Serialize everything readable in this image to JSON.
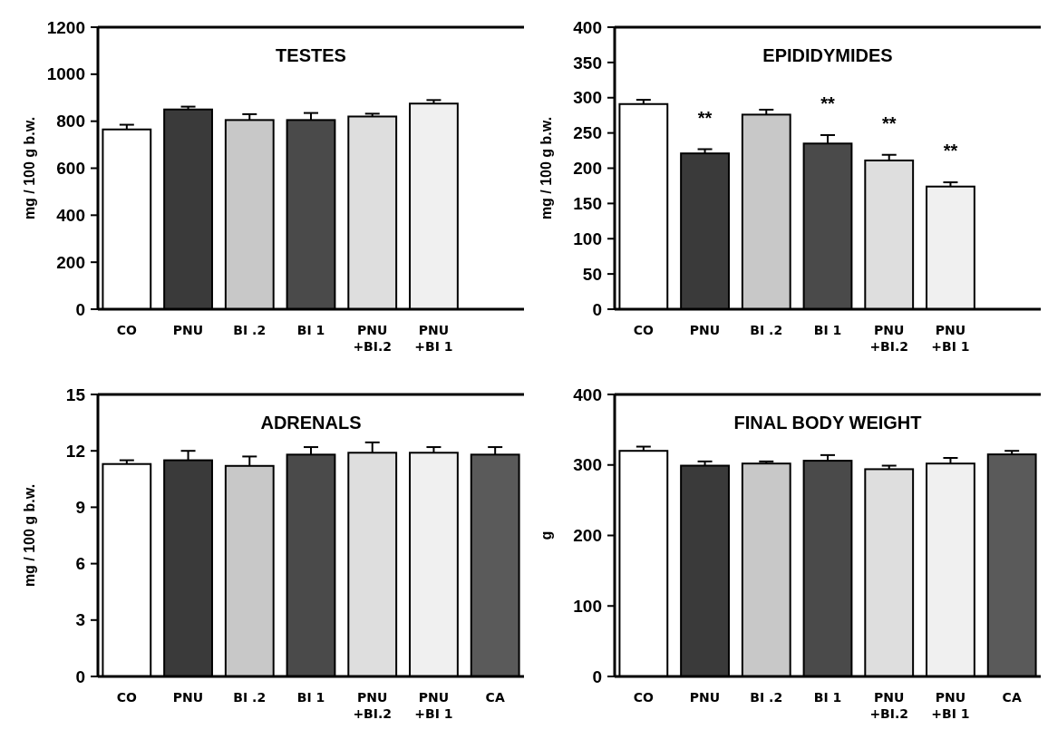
{
  "chart_data": [
    {
      "type": "bar",
      "title": "TESTES",
      "ylabel": "mg / 100 g b.w.",
      "categories": [
        "CO",
        "PNU",
        "BI .2",
        "BI 1",
        "PNU\n+BI.2",
        "PNU\n+BI 1",
        null
      ],
      "values": [
        765,
        850,
        805,
        805,
        820,
        875,
        null
      ],
      "errors": [
        [
          765,
          785
        ],
        [
          850,
          862
        ],
        [
          805,
          830
        ],
        [
          805,
          835
        ],
        [
          820,
          832
        ],
        [
          875,
          890
        ],
        null
      ],
      "colors": [
        "#ffffff",
        "#3a3a3a",
        "#c8c8c8",
        "#4a4a4a",
        "#dedede",
        "#f0f0f0",
        null
      ],
      "ylim": [
        0,
        1200
      ],
      "yticks": [
        0,
        200,
        400,
        600,
        800,
        1000,
        1200
      ]
    },
    {
      "type": "bar",
      "title": "EPIDIDYMIDES",
      "ylabel": "mg / 100 g b.w.",
      "categories": [
        "CO",
        "PNU",
        "BI .2",
        "BI 1",
        "PNU\n+BI.2",
        "PNU\n+BI 1",
        null
      ],
      "values": [
        291,
        221,
        276,
        235,
        211,
        174,
        null
      ],
      "errors": [
        [
          291,
          297
        ],
        [
          221,
          227
        ],
        [
          276,
          283
        ],
        [
          235,
          247
        ],
        [
          211,
          219
        ],
        [
          174,
          180
        ],
        null
      ],
      "colors": [
        "#ffffff",
        "#3a3a3a",
        "#c8c8c8",
        "#4a4a4a",
        "#dedede",
        "#f0f0f0",
        null
      ],
      "ylim": [
        0,
        400
      ],
      "yticks": [
        0,
        50,
        100,
        150,
        200,
        250,
        300,
        350,
        400
      ],
      "annotations": [
        {
          "text": "**",
          "x": "PNU",
          "y": 227
        },
        {
          "text": "**",
          "x": "BI 1",
          "y": 247
        },
        {
          "text": "**",
          "x": "PNU\n+BI.2",
          "y": 219
        },
        {
          "text": "**",
          "x": "PNU\n+BI 1",
          "y": 180
        }
      ]
    },
    {
      "type": "bar",
      "title": "ADRENALS",
      "ylabel": "mg / 100 g b.w.",
      "categories": [
        "CO",
        "PNU",
        "BI .2",
        "BI 1",
        "PNU\n+BI.2",
        "PNU\n+BI 1",
        "CA"
      ],
      "values": [
        11.3,
        11.5,
        11.2,
        11.8,
        11.9,
        11.9,
        11.8
      ],
      "errors": [
        [
          11.3,
          11.5
        ],
        [
          11.5,
          12.0
        ],
        [
          11.2,
          11.7
        ],
        [
          11.8,
          12.2
        ],
        [
          11.9,
          12.45
        ],
        [
          11.9,
          12.2
        ],
        [
          11.8,
          12.2
        ]
      ],
      "colors": [
        "#ffffff",
        "#3a3a3a",
        "#c8c8c8",
        "#4a4a4a",
        "#dedede",
        "#f0f0f0",
        "#5a5a5a"
      ],
      "ylim": [
        0,
        15
      ],
      "yticks": [
        0,
        3,
        6,
        9,
        12,
        15
      ]
    },
    {
      "type": "bar",
      "title": "FINAL BODY WEIGHT",
      "ylabel": "g",
      "categories": [
        "CO",
        "PNU",
        "BI .2",
        "BI 1",
        "PNU\n+BI.2",
        "PNU\n+BI 1",
        "CA"
      ],
      "values": [
        320,
        299,
        302,
        306,
        294,
        302,
        315
      ],
      "errors": [
        [
          320,
          326
        ],
        [
          299,
          305
        ],
        [
          302,
          305
        ],
        [
          306,
          314
        ],
        [
          294,
          299
        ],
        [
          302,
          310
        ],
        [
          315,
          320
        ]
      ],
      "colors": [
        "#ffffff",
        "#3a3a3a",
        "#c8c8c8",
        "#4a4a4a",
        "#dedede",
        "#f0f0f0",
        "#5a5a5a"
      ],
      "ylim": [
        0,
        400
      ],
      "yticks": [
        0,
        100,
        200,
        300,
        400
      ]
    }
  ]
}
